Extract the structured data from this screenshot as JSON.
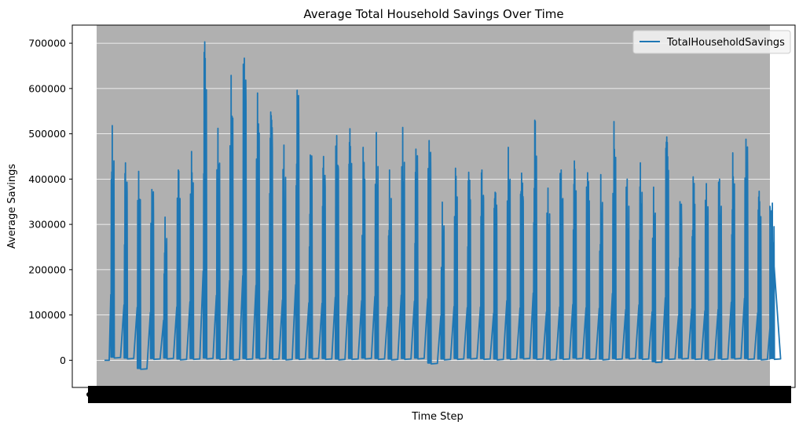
{
  "chart_data": {
    "type": "line",
    "title": "Average Total Household Savings Over Time",
    "xlabel": "Time Step",
    "ylabel": "Average Savings",
    "ylim": [
      -60000,
      740000
    ],
    "yticks": [
      0,
      100000,
      200000,
      300000,
      400000,
      500000,
      600000,
      700000
    ],
    "yticklabels": [
      "0",
      "100000",
      "200000",
      "300000",
      "400000",
      "500000",
      "600000",
      "700000"
    ],
    "x_tick_labels_overlapping": true,
    "grid": "y",
    "legend_position": "top-right",
    "colors": {
      "line": "#1f77b4",
      "plot_bg": "#b0b0b0",
      "grid": "#ffffff"
    },
    "series": [
      {
        "name": "TotalHouseholdSavings",
        "color": "#1f77b4",
        "cycle_peaks": [
          518000,
          436000,
          417000,
          377000,
          316000,
          420000,
          461000,
          703000,
          512000,
          629000,
          667000,
          590000,
          548000,
          475000,
          596000,
          453000,
          450000,
          496000,
          511000,
          470000,
          503000,
          420000,
          514000,
          466000,
          485000,
          349000,
          424000,
          415000,
          420000,
          371000,
          470000,
          413000,
          530000,
          380000,
          420000,
          440000,
          414000,
          410000,
          527000,
          400000,
          436000,
          382000,
          493000,
          350000,
          405000,
          390000,
          400000,
          458000,
          488000,
          373000,
          347000
        ],
        "cycle_mins": [
          5000,
          3000,
          -20000,
          2000,
          3000,
          1000,
          2000,
          3000,
          2000,
          1000,
          2000,
          3000,
          2000,
          1000,
          2000,
          3000,
          2000,
          1000,
          2000,
          3000,
          2000,
          1000,
          2000,
          3000,
          -8000,
          1000,
          2000,
          3000,
          2000,
          1000,
          2000,
          3000,
          2000,
          1000,
          2000,
          3000,
          2000,
          1000,
          2000,
          3000,
          2000,
          -5000,
          2000,
          3000,
          2000,
          1000,
          2000,
          3000,
          2000,
          1000,
          2000
        ]
      }
    ]
  }
}
